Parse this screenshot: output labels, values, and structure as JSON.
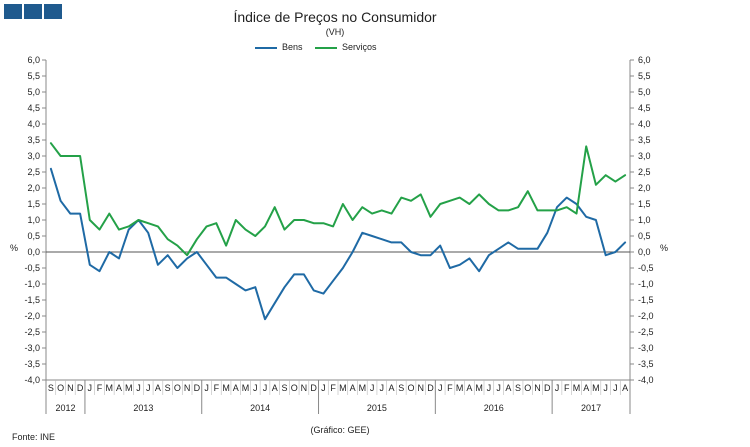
{
  "header": {
    "title": "Índice de Preços no Consumidor",
    "subtitle": "(VH)"
  },
  "footer": {
    "source": "Fonte: INE",
    "credit": "(Gráfico: GEE)"
  },
  "colors": {
    "bens": "#1f6aa5",
    "servicos": "#24a148",
    "logo": "#1f5a8e"
  },
  "chart_data": {
    "type": "line",
    "title": "Índice de Preços no Consumidor",
    "subtitle": "(VH)",
    "ylabel": "%",
    "ylabel_right": "%",
    "ylim": [
      -4.0,
      6.0
    ],
    "ytick_step": 0.5,
    "grid": false,
    "legend_position": "top-center",
    "months": [
      "S",
      "O",
      "N",
      "D",
      "J",
      "F",
      "M",
      "A",
      "M",
      "J",
      "J",
      "A",
      "S",
      "O",
      "N",
      "D",
      "J",
      "F",
      "M",
      "A",
      "M",
      "J",
      "J",
      "A",
      "S",
      "O",
      "N",
      "D",
      "J",
      "F",
      "M",
      "A",
      "M",
      "J",
      "J",
      "A",
      "S",
      "O",
      "N",
      "D",
      "J",
      "F",
      "M",
      "A",
      "M",
      "J",
      "J",
      "A",
      "S",
      "O",
      "N",
      "D",
      "J",
      "F",
      "M",
      "A",
      "M",
      "J",
      "J",
      "A"
    ],
    "years": [
      {
        "label": "2012",
        "start": 0,
        "end": 3
      },
      {
        "label": "2013",
        "start": 4,
        "end": 15
      },
      {
        "label": "2014",
        "start": 16,
        "end": 27
      },
      {
        "label": "2015",
        "start": 28,
        "end": 39
      },
      {
        "label": "2016",
        "start": 40,
        "end": 51
      },
      {
        "label": "2017",
        "start": 52,
        "end": 59
      }
    ],
    "series": [
      {
        "name": "Bens",
        "values": [
          2.6,
          1.6,
          1.2,
          1.2,
          -0.4,
          -0.6,
          0.0,
          -0.2,
          0.7,
          1.0,
          0.6,
          -0.4,
          -0.1,
          -0.5,
          -0.2,
          0.0,
          -0.4,
          -0.8,
          -0.8,
          -1.0,
          -1.2,
          -1.1,
          -2.1,
          -1.6,
          -1.1,
          -0.7,
          -0.7,
          -1.2,
          -1.3,
          -0.9,
          -0.5,
          0.0,
          0.6,
          0.5,
          0.4,
          0.3,
          0.3,
          0.0,
          -0.1,
          -0.1,
          0.2,
          -0.5,
          -0.4,
          -0.2,
          -0.6,
          -0.1,
          0.1,
          0.3,
          0.1,
          0.1,
          0.1,
          0.6,
          1.4,
          1.7,
          1.5,
          1.1,
          1.0,
          -0.1,
          0.0,
          0.3
        ]
      },
      {
        "name": "Serviços",
        "values": [
          3.4,
          3.0,
          3.0,
          3.0,
          1.0,
          0.7,
          1.2,
          0.7,
          0.8,
          1.0,
          0.9,
          0.8,
          0.4,
          0.2,
          -0.1,
          0.4,
          0.8,
          0.9,
          0.2,
          1.0,
          0.7,
          0.5,
          0.8,
          1.4,
          0.7,
          1.0,
          1.0,
          0.9,
          0.9,
          0.8,
          1.5,
          1.0,
          1.4,
          1.2,
          1.3,
          1.2,
          1.7,
          1.6,
          1.8,
          1.1,
          1.5,
          1.6,
          1.7,
          1.5,
          1.8,
          1.5,
          1.3,
          1.3,
          1.4,
          1.9,
          1.3,
          1.3,
          1.3,
          1.4,
          1.2,
          3.3,
          2.1,
          2.4,
          2.2,
          2.4
        ]
      }
    ]
  }
}
